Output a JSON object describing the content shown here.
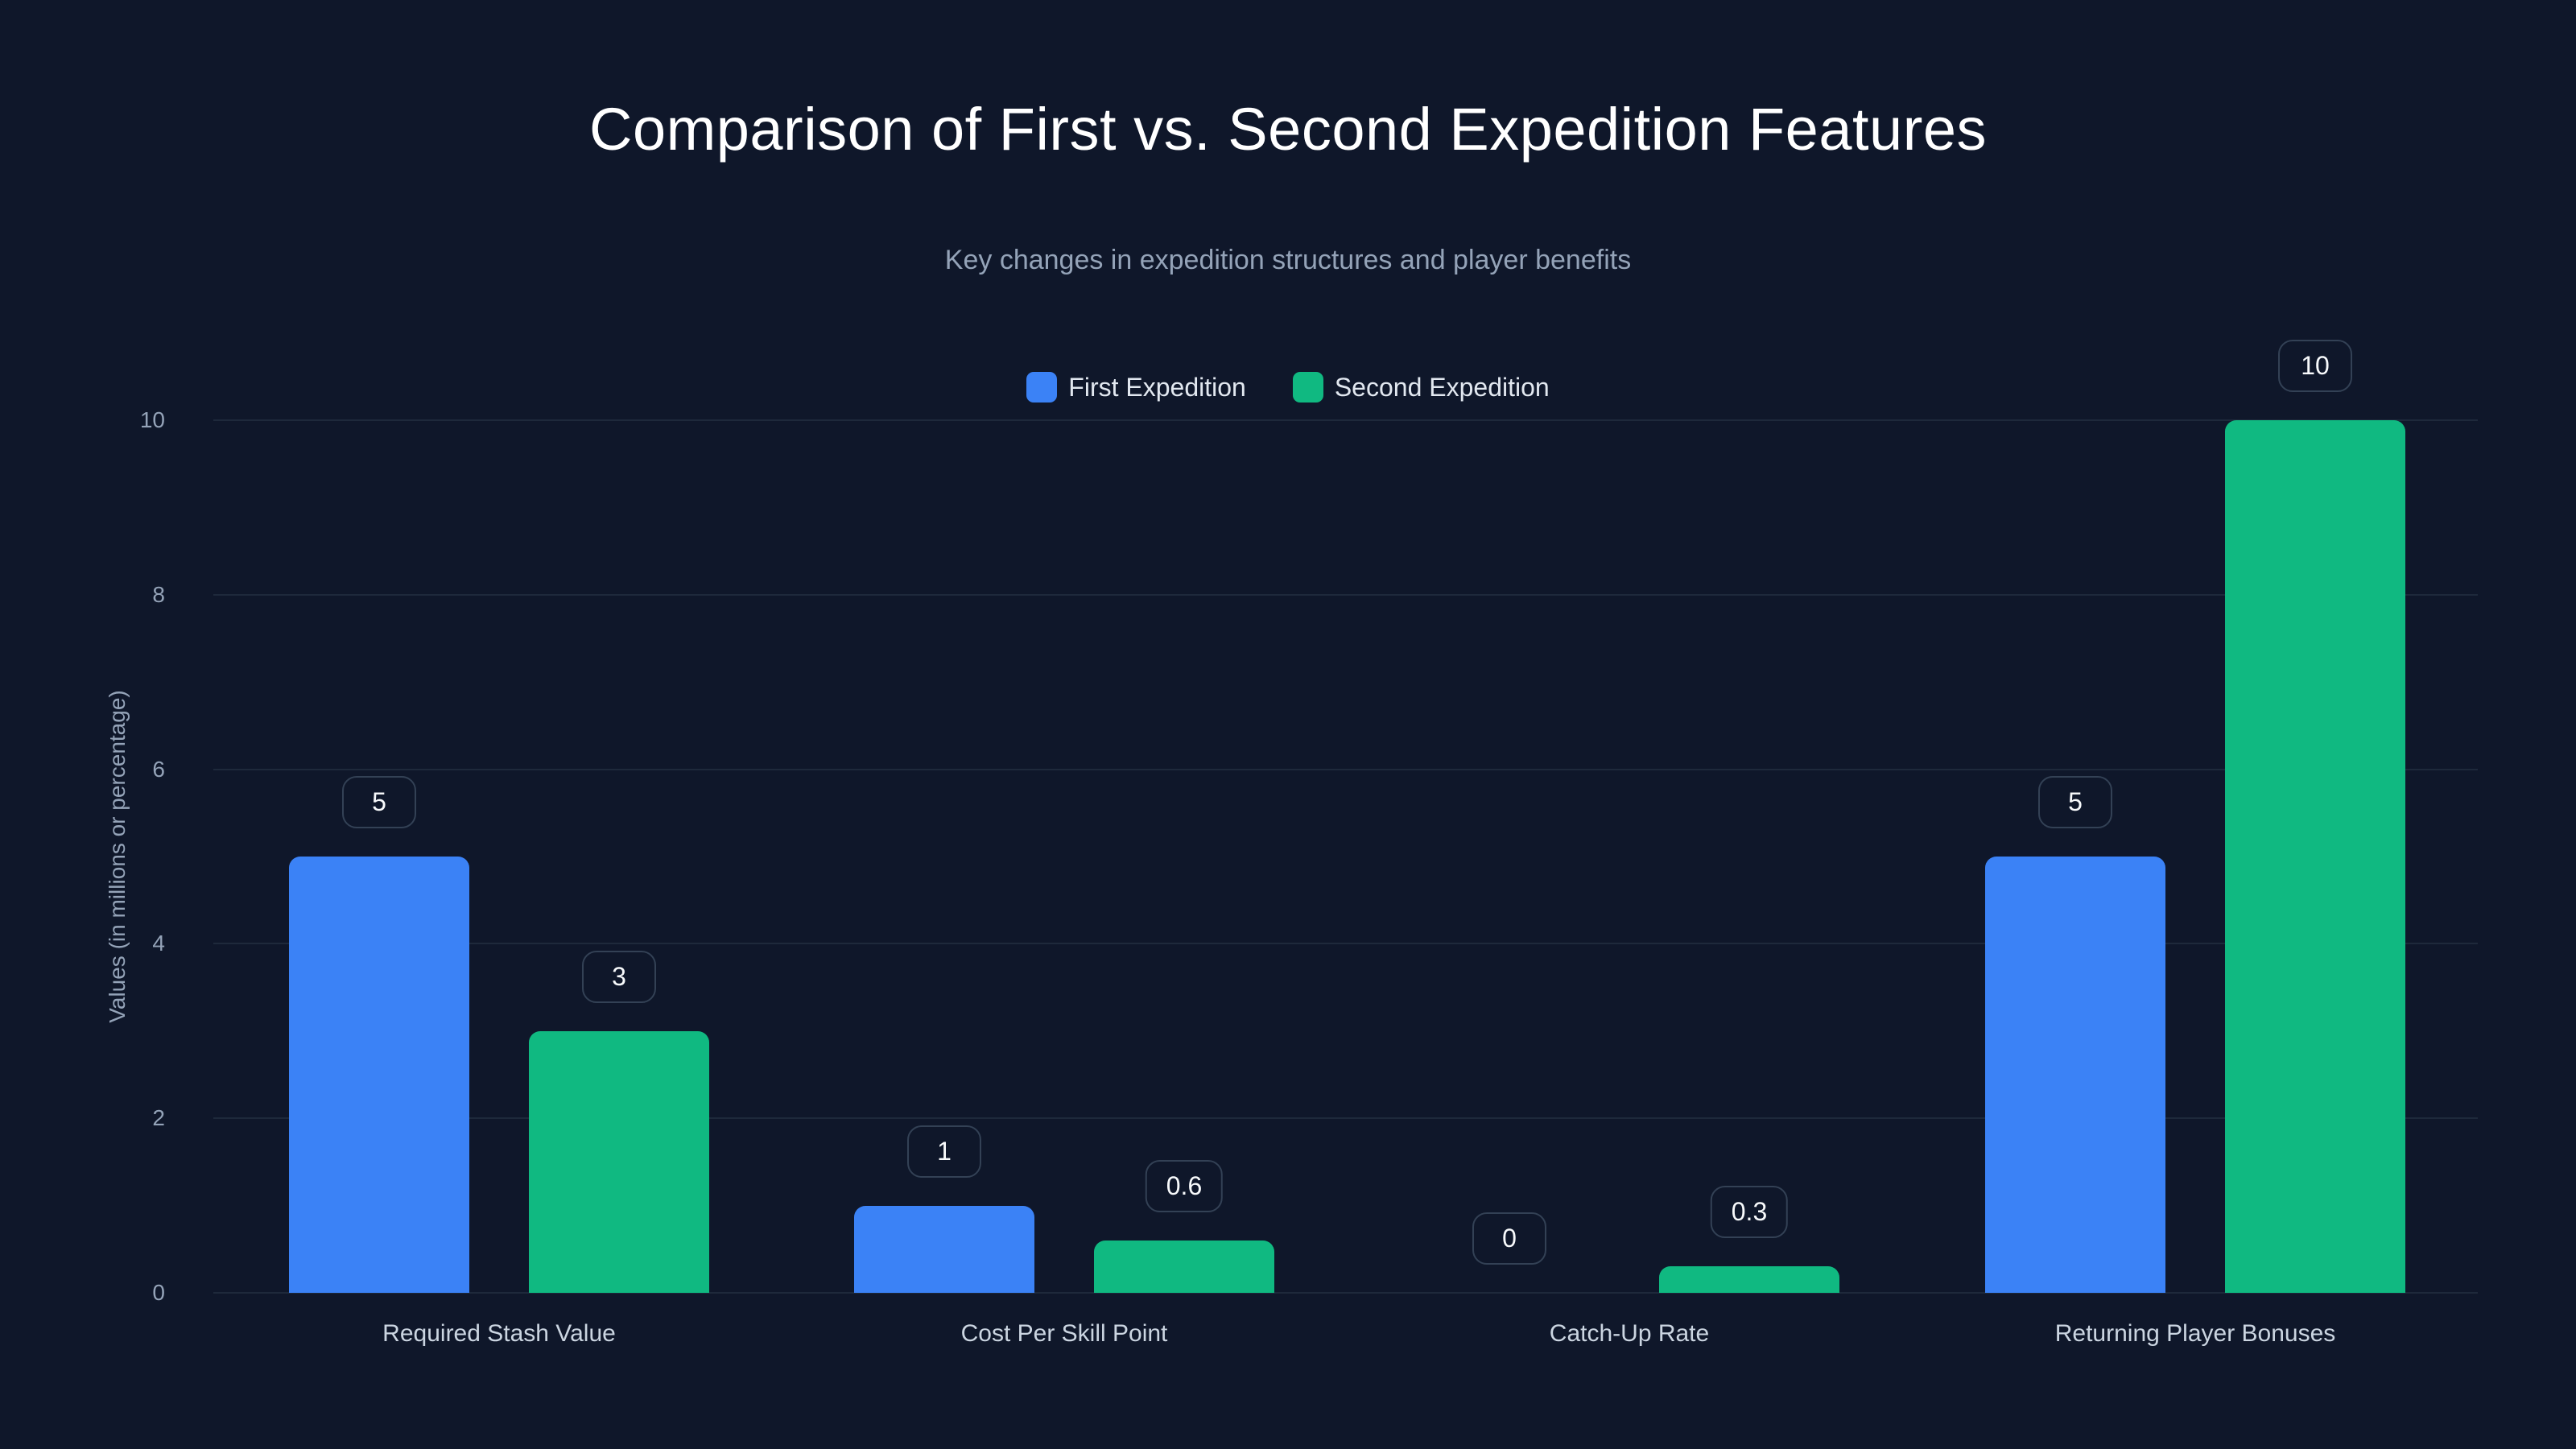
{
  "title": "Comparison of First vs. Second Expedition Features",
  "subtitle": "Key changes in expedition structures and player benefits",
  "legend": [
    {
      "label": "First Expedition",
      "color": "#3b82f6"
    },
    {
      "label": "Second Expedition",
      "color": "#10b981"
    }
  ],
  "y_axis": {
    "label": "Values (in millions or percentage)",
    "ticks": [
      "0",
      "2",
      "4",
      "6",
      "8",
      "10"
    ]
  },
  "chart_data": {
    "type": "bar",
    "title": "Comparison of First vs. Second Expedition Features",
    "subtitle": "Key changes in expedition structures and player benefits",
    "xlabel": "",
    "ylabel": "Values (in millions or percentage)",
    "ylim": [
      0,
      10
    ],
    "yticks": [
      0,
      2,
      4,
      6,
      8,
      10
    ],
    "grid": true,
    "legend_position": "top",
    "categories": [
      "Required Stash Value",
      "Cost Per Skill Point",
      "Catch-Up Rate",
      "Returning Player Bonuses"
    ],
    "series": [
      {
        "name": "First Expedition",
        "color": "#3b82f6",
        "values": [
          5,
          1,
          0,
          5
        ]
      },
      {
        "name": "Second Expedition",
        "color": "#10b981",
        "values": [
          3,
          0.6,
          0.3,
          10
        ]
      }
    ]
  }
}
